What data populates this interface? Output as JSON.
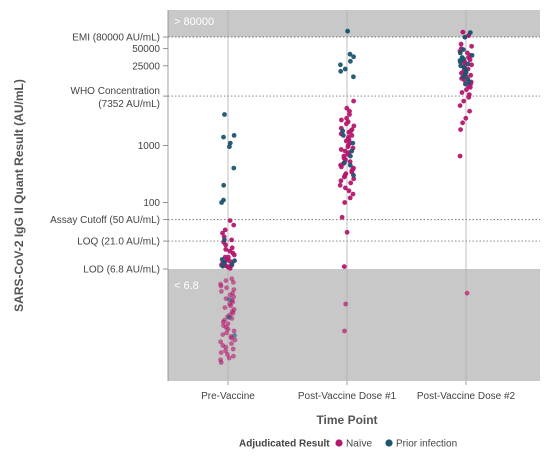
{
  "chart_data": {
    "type": "scatter",
    "ylabel": "SARS-CoV-2 IgG II Quant Result (AU/mL)",
    "xlabel": "Time Point",
    "y_scale": "log",
    "categories": [
      "Pre-Vaccine",
      "Post-Vaccine Dose #1",
      "Post-Vaccine Dose #2"
    ],
    "y_ticks": [
      {
        "label": "EMI (80000 AU/mL)",
        "value": 80000,
        "line": "dotted"
      },
      {
        "label": "50000",
        "value": 50000
      },
      {
        "label": "25000",
        "value": 25000
      },
      {
        "label": "WHO Concentration",
        "label2": "(7352 AU/mL)",
        "value": 7352,
        "line": "dotted"
      },
      {
        "label": "1000",
        "value": 1000
      },
      {
        "label": "100",
        "value": 100
      },
      {
        "label": "Assay Cutoff (50 AU/mL)",
        "value": 50,
        "line": "dotted"
      },
      {
        "label": "LOQ (21.0 AU/mL)",
        "value": 21,
        "line": "dotted"
      },
      {
        "label": "LOD (6.8 AU/mL)",
        "value": 6.8,
        "line": "solid"
      }
    ],
    "bands": [
      {
        "label": "> 80000",
        "from": 80000,
        "position": "top"
      },
      {
        "label": "< 6.8",
        "from": 6.8,
        "position": "bottom"
      }
    ],
    "legend": {
      "title": "Adjudicated Result",
      "position": "bottom",
      "items": [
        {
          "name": "Naïve",
          "color": "#b5176e"
        },
        {
          "name": "Prior infection",
          "color": "#1c5570"
        }
      ]
    },
    "series": [
      {
        "name": "Naïve",
        "color": "#b5176e",
        "points": {
          "Pre-Vaccine": [
            48,
            40,
            33,
            29,
            25,
            22,
            20,
            18,
            16,
            15,
            14,
            13,
            12,
            11,
            11,
            10,
            10,
            9.5,
            9,
            9,
            8.5,
            8,
            8,
            7.8,
            7.5,
            7.3,
            7.2,
            7.0
          ],
          "Post-Vaccine Dose #1": [
            7.5,
            6000,
            4500,
            4000,
            3500,
            3000,
            2800,
            2600,
            2400,
            2200,
            2000,
            1900,
            1800,
            1700,
            1600,
            1500,
            1400,
            1300,
            1250,
            1200,
            1100,
            1000,
            950,
            900,
            850,
            800,
            750,
            700,
            650,
            600,
            560,
            520,
            480,
            450,
            420,
            400,
            380,
            360,
            340,
            320,
            300,
            280,
            260,
            240,
            220,
            200,
            180,
            160,
            140,
            120,
            100,
            55,
            30
          ],
          "Post-Vaccine Dose #2": [
            60000,
            55000,
            50000,
            45000,
            42000,
            38000,
            35000,
            32000,
            30000,
            28000,
            26000,
            24000,
            22000,
            20000,
            18500,
            17000,
            16000,
            15000,
            14000,
            13000,
            12000,
            11000,
            10500,
            9500,
            8500,
            7800,
            7000,
            6000,
            5000,
            4000,
            3000,
            2500,
            1900,
            650
          ]
        },
        "below_lod_rel": {
          "Pre-Vaccine": [
            0.02,
            0.04,
            0.06,
            0.08,
            0.1,
            0.12,
            0.14,
            0.16,
            0.18,
            0.2,
            0.22,
            0.24,
            0.26,
            0.28,
            0.3,
            0.32,
            0.34,
            0.36,
            0.38,
            0.4,
            0.42,
            0.44,
            0.46,
            0.48,
            0.5,
            0.52,
            0.54,
            0.56,
            0.58,
            0.6,
            0.62,
            0.64,
            0.66,
            0.68,
            0.7,
            0.72,
            0.74,
            0.76,
            0.78,
            0.8,
            0.82,
            0.84,
            0.86,
            0.88,
            0.9,
            0.92,
            0.95
          ],
          "Post-Vaccine Dose #1": [
            0.3,
            0.6
          ],
          "Post-Vaccine Dose #2": [
            0.18
          ]
        },
        "above_emi": {
          "Pre-Vaccine": 0,
          "Post-Vaccine Dose #1": 0,
          "Post-Vaccine Dose #2": 2
        }
      },
      {
        "name": "Prior infection",
        "color": "#1c5570",
        "points": {
          "Pre-Vaccine": [
            3500,
            1500,
            1400,
            1100,
            950,
            400,
            200,
            110,
            100,
            22,
            10,
            9.5,
            8.8,
            8.2,
            7.6
          ],
          "Post-Vaccine Dose #1": [
            40000,
            36000,
            30000,
            26000,
            22000,
            20000,
            16000,
            1800,
            1500,
            1100,
            800,
            650,
            500,
            450,
            300
          ],
          "Post-Vaccine Dose #2": [
            48000,
            42000,
            38000,
            35000,
            33000,
            31000,
            29000,
            27000,
            25000,
            23000,
            21000,
            19000,
            17500,
            16000,
            14500,
            13000,
            12000
          ]
        },
        "below_lod_rel": {
          "Pre-Vaccine": [
            0.25,
            0.45,
            0.65
          ],
          "Post-Vaccine Dose #1": [],
          "Post-Vaccine Dose #2": []
        },
        "above_emi": {
          "Pre-Vaccine": 0,
          "Post-Vaccine Dose #1": 1,
          "Post-Vaccine Dose #2": 2
        }
      }
    ]
  }
}
